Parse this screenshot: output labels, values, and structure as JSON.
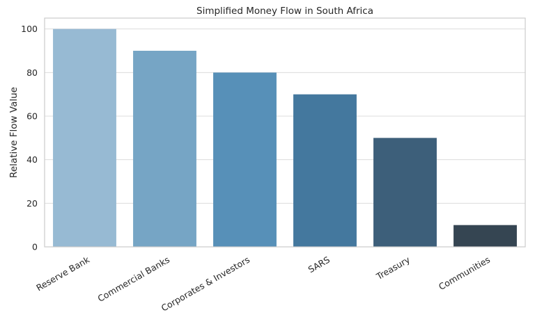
{
  "chart_data": {
    "type": "bar",
    "title": "Simplified Money Flow in South Africa",
    "xlabel": "",
    "ylabel": "Relative Flow Value",
    "categories": [
      "Reserve Bank",
      "Commercial Banks",
      "Corporates & Investors",
      "SARS",
      "Treasury",
      "Communities"
    ],
    "values": [
      100,
      90,
      80,
      70,
      50,
      10
    ],
    "colors": [
      "#97bad3",
      "#76a5c5",
      "#5790b8",
      "#44789e",
      "#3d5f7a",
      "#354552"
    ],
    "ylim": [
      0,
      105
    ],
    "yticks": [
      0,
      20,
      40,
      60,
      80,
      100
    ],
    "grid": true,
    "legend": "none"
  }
}
